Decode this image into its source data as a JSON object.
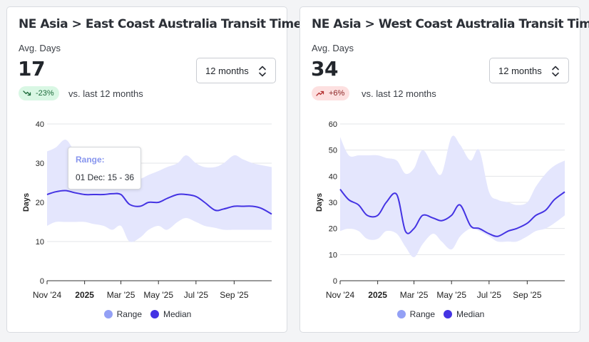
{
  "colors": {
    "range": "#e4e6fd",
    "range_legend": "#93a0f5",
    "median": "#4433e3",
    "grid": "#e3e5e8",
    "axis": "#222222"
  },
  "cards": [
    {
      "title": "NE Asia > East Coast Australia Transit Times",
      "metric_label": "Avg. Days",
      "metric_value": "17",
      "select_value": "12 months",
      "change": "-23%",
      "change_direction": "down",
      "change_icon": "trend-down-icon",
      "change_label": "vs. last 12 months",
      "legend": {
        "range": "Range",
        "median": "Median"
      },
      "tooltip": {
        "title": "Range:",
        "body": "01 Dec: 15 - 36"
      },
      "chart_data": {
        "type": "area",
        "ylabel": "Days",
        "ylim": [
          0,
          40
        ],
        "yticks": [
          0,
          10,
          20,
          30,
          40
        ],
        "x_range": [
          "2024-11-01",
          "2025-11-01"
        ],
        "xticks": [
          {
            "label": "Nov '24",
            "date": "2024-11-01",
            "bold": false
          },
          {
            "label": "2025",
            "date": "2025-01-01",
            "bold": true
          },
          {
            "label": "Mar '25",
            "date": "2025-03-01",
            "bold": false
          },
          {
            "label": "May '25",
            "date": "2025-05-01",
            "bold": false
          },
          {
            "label": "Jul '25",
            "date": "2025-07-01",
            "bold": false
          },
          {
            "label": "Sep '25",
            "date": "2025-09-01",
            "bold": false
          }
        ],
        "series": [
          {
            "name": "Range",
            "x": [
              "2024-11-01",
              "2024-11-15",
              "2024-12-01",
              "2024-12-15",
              "2025-01-01",
              "2025-01-15",
              "2025-02-01",
              "2025-02-15",
              "2025-03-01",
              "2025-03-15",
              "2025-04-01",
              "2025-04-15",
              "2025-05-01",
              "2025-05-15",
              "2025-06-01",
              "2025-06-15",
              "2025-07-01",
              "2025-07-15",
              "2025-08-01",
              "2025-08-15",
              "2025-09-01",
              "2025-09-15",
              "2025-10-01",
              "2025-10-15",
              "2025-11-01"
            ],
            "low": [
              14,
              15,
              15,
              15,
              15,
              14.5,
              14,
              13,
              14,
              10,
              11,
              13,
              14,
              13,
              15,
              16,
              15,
              14,
              13.5,
              13,
              13,
              13,
              13,
              13,
              13
            ],
            "high": [
              33,
              34,
              36,
              33,
              28,
              28,
              28,
              27,
              27,
              26,
              26,
              27,
              28,
              29,
              30,
              32,
              30,
              29,
              29,
              30,
              32,
              31,
              30,
              29.5,
              29
            ]
          },
          {
            "name": "Median",
            "x": [
              "2024-11-01",
              "2024-11-15",
              "2024-12-01",
              "2024-12-15",
              "2025-01-01",
              "2025-01-15",
              "2025-02-01",
              "2025-02-15",
              "2025-03-01",
              "2025-03-15",
              "2025-04-01",
              "2025-04-15",
              "2025-05-01",
              "2025-05-15",
              "2025-06-01",
              "2025-06-15",
              "2025-07-01",
              "2025-07-15",
              "2025-08-01",
              "2025-08-15",
              "2025-09-01",
              "2025-09-15",
              "2025-10-01",
              "2025-10-15",
              "2025-11-01"
            ],
            "values": [
              22,
              22.7,
              23,
              22.5,
              22,
              22,
              22,
              22.2,
              22,
              19.5,
              19,
              20,
              20,
              21,
              22,
              22,
              21.5,
              20,
              18,
              18.3,
              19,
              19,
              19,
              18.5,
              17
            ]
          }
        ]
      }
    },
    {
      "title": "NE Asia > West Coast Australia Transit Times",
      "metric_label": "Avg. Days",
      "metric_value": "34",
      "select_value": "12 months",
      "change": "+6%",
      "change_direction": "up",
      "change_icon": "trend-up-icon",
      "change_label": "vs. last 12 months",
      "legend": {
        "range": "Range",
        "median": "Median"
      },
      "chart_data": {
        "type": "area",
        "ylabel": "Days",
        "ylim": [
          0,
          60
        ],
        "yticks": [
          0,
          10,
          20,
          30,
          40,
          50,
          60
        ],
        "x_range": [
          "2024-11-01",
          "2025-11-01"
        ],
        "xticks": [
          {
            "label": "Nov '24",
            "date": "2024-11-01",
            "bold": false
          },
          {
            "label": "2025",
            "date": "2025-01-01",
            "bold": true
          },
          {
            "label": "Mar '25",
            "date": "2025-03-01",
            "bold": false
          },
          {
            "label": "May '25",
            "date": "2025-05-01",
            "bold": false
          },
          {
            "label": "Jul '25",
            "date": "2025-07-01",
            "bold": false
          },
          {
            "label": "Sep '25",
            "date": "2025-09-01",
            "bold": false
          }
        ],
        "series": [
          {
            "name": "Range",
            "x": [
              "2024-11-01",
              "2024-11-15",
              "2024-12-01",
              "2024-12-15",
              "2025-01-01",
              "2025-01-15",
              "2025-02-01",
              "2025-02-15",
              "2025-03-01",
              "2025-03-15",
              "2025-04-01",
              "2025-04-15",
              "2025-05-01",
              "2025-05-15",
              "2025-06-01",
              "2025-06-15",
              "2025-07-01",
              "2025-07-15",
              "2025-08-01",
              "2025-08-15",
              "2025-09-01",
              "2025-09-15",
              "2025-10-01",
              "2025-10-15",
              "2025-11-01"
            ],
            "low": [
              19,
              20,
              19,
              16,
              16,
              19,
              18,
              13,
              9,
              14,
              18,
              15,
              12,
              17,
              20,
              19,
              17,
              15,
              15,
              15,
              17,
              19,
              20,
              22,
              25
            ],
            "high": [
              55,
              48,
              48,
              48,
              48,
              47,
              46,
              41,
              43,
              50,
              44,
              41,
              55,
              52,
              46,
              50,
              34,
              31,
              30,
              29,
              30,
              36,
              41,
              44,
              46
            ]
          },
          {
            "name": "Median",
            "x": [
              "2024-11-01",
              "2024-11-15",
              "2024-12-01",
              "2024-12-15",
              "2025-01-01",
              "2025-01-15",
              "2025-02-01",
              "2025-02-15",
              "2025-03-01",
              "2025-03-15",
              "2025-04-01",
              "2025-04-15",
              "2025-05-01",
              "2025-05-15",
              "2025-06-01",
              "2025-06-15",
              "2025-07-01",
              "2025-07-15",
              "2025-08-01",
              "2025-08-15",
              "2025-09-01",
              "2025-09-15",
              "2025-10-01",
              "2025-10-15",
              "2025-11-01"
            ],
            "values": [
              35,
              31,
              29,
              25,
              25,
              30,
              33,
              19,
              20,
              25,
              24,
              23,
              25,
              29,
              21,
              20,
              18,
              17,
              19,
              20,
              22,
              25,
              27,
              31,
              34
            ]
          }
        ]
      }
    }
  ]
}
